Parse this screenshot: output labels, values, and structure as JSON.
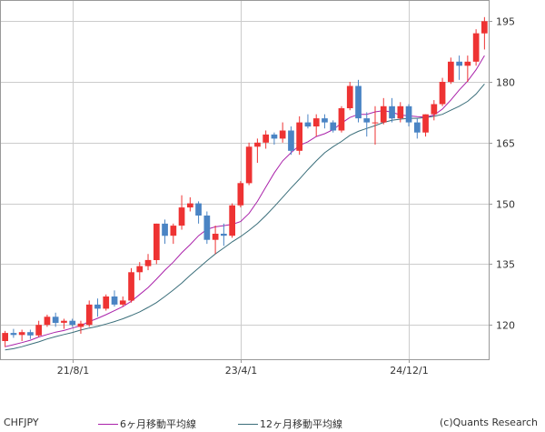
{
  "chart_data": {
    "type": "candlestick",
    "symbol": "CHFJPY",
    "credit": "(c)Quants Research",
    "y_axis": {
      "ticks": [
        120,
        135,
        150,
        165,
        180,
        195
      ],
      "range": [
        111.5,
        200
      ],
      "position": "right"
    },
    "x_axis": {
      "tick_labels": [
        {
          "label": "21/8/1",
          "index": 8
        },
        {
          "label": "23/4/1",
          "index": 28
        },
        {
          "label": "24/12/1",
          "index": 48
        }
      ]
    },
    "grid": true,
    "colors": {
      "up": "#ee3333",
      "down": "#4a84c4",
      "ma6": "#aa22aa",
      "ma12": "#3a6e7a",
      "grid": "#cccccc"
    },
    "legend": {
      "placement": "bottom",
      "ma6": "6ヶ月移動平均線",
      "ma12": "12ヶ月移動平均線"
    },
    "candles": [
      [
        116,
        118.5,
        114.5,
        118
      ],
      [
        118,
        119,
        116.8,
        117.5
      ],
      [
        117.5,
        118.8,
        116,
        118.2
      ],
      [
        118.2,
        118.8,
        116.5,
        117.4
      ],
      [
        117.4,
        121,
        117,
        120
      ],
      [
        120,
        122.5,
        119.5,
        122
      ],
      [
        122,
        123,
        119.5,
        120.5
      ],
      [
        120.5,
        121.5,
        119,
        121
      ],
      [
        121,
        121.5,
        119.5,
        120
      ],
      [
        119.5,
        121,
        117.8,
        120.3
      ],
      [
        120,
        126,
        119.5,
        125
      ],
      [
        125,
        126.5,
        122,
        124
      ],
      [
        124,
        127.5,
        123.5,
        127
      ],
      [
        127,
        128.5,
        124.5,
        125
      ],
      [
        125,
        127,
        124.5,
        126
      ],
      [
        126,
        134,
        125.5,
        133
      ],
      [
        133,
        135.5,
        131,
        134.5
      ],
      [
        134.5,
        137.5,
        133.5,
        136
      ],
      [
        136,
        145,
        135,
        145
      ],
      [
        145,
        146,
        140,
        142
      ],
      [
        142,
        145,
        140,
        144.5
      ],
      [
        144.5,
        152,
        143.5,
        149
      ],
      [
        149,
        151.5,
        148,
        150
      ],
      [
        150,
        150.5,
        145,
        147
      ],
      [
        147,
        148,
        140,
        141
      ],
      [
        141,
        144.5,
        137.5,
        142.5
      ],
      [
        142.5,
        145,
        139.5,
        142
      ],
      [
        142,
        150,
        141.5,
        149.5
      ],
      [
        149.5,
        155.5,
        149,
        155
      ],
      [
        155,
        165,
        154.5,
        164
      ],
      [
        164,
        166,
        160,
        165
      ],
      [
        165,
        168,
        163.5,
        167
      ],
      [
        167,
        167.5,
        164.5,
        166
      ],
      [
        166,
        170,
        165,
        168
      ],
      [
        168,
        169,
        162,
        163
      ],
      [
        163,
        171.5,
        162,
        170
      ],
      [
        170,
        172,
        168.5,
        169
      ],
      [
        169,
        172,
        166.5,
        171
      ],
      [
        171,
        172,
        168.5,
        170
      ],
      [
        170,
        170.5,
        167.5,
        168
      ],
      [
        168,
        174,
        167.5,
        173.5
      ],
      [
        173.5,
        180,
        173,
        179
      ],
      [
        179,
        180.5,
        170,
        171
      ],
      [
        171,
        172.5,
        166.5,
        170
      ],
      [
        170,
        174,
        164.5,
        170
      ],
      [
        170,
        176,
        169.5,
        174
      ],
      [
        174,
        176,
        170,
        171
      ],
      [
        171,
        175,
        170,
        174
      ],
      [
        174,
        174.5,
        169,
        170
      ],
      [
        170,
        171,
        166,
        167.5
      ],
      [
        167.5,
        172,
        166.5,
        172
      ],
      [
        172,
        175.5,
        170.5,
        174.5
      ],
      [
        174.5,
        181,
        174,
        180
      ],
      [
        180,
        186,
        179.5,
        185
      ],
      [
        185,
        186.5,
        180.5,
        184
      ],
      [
        184,
        186.5,
        180,
        185
      ],
      [
        185,
        193,
        184,
        192
      ],
      [
        192,
        196,
        188,
        195
      ]
    ],
    "ma6": [
      114.6,
      115.1,
      115.6,
      116.2,
      117,
      117.6,
      118.2,
      118.6,
      119.2,
      119.8,
      120.8,
      121.6,
      122.5,
      123.5,
      124.5,
      125.8,
      127.5,
      129.2,
      131.3,
      133.5,
      135.5,
      137.8,
      139.8,
      142,
      143.6,
      144.2,
      144.5,
      144.8,
      145.5,
      147.5,
      150.5,
      154,
      157.5,
      160.5,
      162.5,
      164.3,
      165.2,
      166.5,
      167.2,
      168.2,
      169.8,
      171.2,
      172,
      172,
      172.6,
      172.9,
      172.5,
      171.8,
      171.6,
      171.4,
      171.3,
      171.8,
      173.3,
      175.5,
      178,
      180.2,
      183,
      186.5
    ],
    "ma12": [
      113.8,
      114.1,
      114.6,
      115.2,
      115.8,
      116.5,
      117.1,
      117.6,
      118.1,
      118.7,
      119.2,
      119.6,
      120.2,
      120.8,
      121.5,
      122.3,
      123.2,
      124.3,
      125.5,
      127,
      128.6,
      130.3,
      132.2,
      134,
      135.8,
      137.5,
      139,
      140.5,
      141.8,
      143.3,
      145,
      147,
      149.2,
      151.5,
      153.8,
      156,
      158.3,
      160.5,
      162.5,
      164,
      165.3,
      166.8,
      167.8,
      168.5,
      169.2,
      170,
      170.5,
      170.8,
      171,
      171,
      171.2,
      171.5,
      172,
      173,
      174,
      175.2,
      177,
      179.5
    ]
  }
}
